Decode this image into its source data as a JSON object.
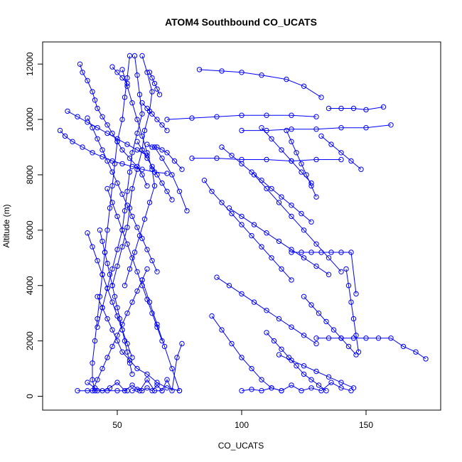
{
  "chart_data": {
    "type": "line",
    "title": "ATOM4 Southbound CO_UCATS",
    "xlabel": "CO_UCATS",
    "ylabel": "Altitude (m)",
    "xlim": [
      20,
      180
    ],
    "ylim": [
      -500,
      12800
    ],
    "x_ticks": [
      50,
      100,
      150
    ],
    "y_ticks": [
      0,
      2000,
      4000,
      6000,
      8000,
      10000,
      12000
    ],
    "grid": false,
    "legend": "none",
    "marker": "open-circle",
    "color": "#0000ff",
    "series": [
      {
        "x": [
          35,
          36,
          38,
          40,
          41,
          42,
          44,
          46,
          48,
          50,
          52,
          55,
          58,
          60,
          62
        ],
        "y": [
          12000,
          11700,
          11400,
          11000,
          10700,
          10400,
          10100,
          9800,
          9500,
          9200,
          8900,
          8600,
          8300,
          8000,
          7600
        ]
      },
      {
        "x": [
          27,
          29,
          32,
          36,
          40,
          44,
          48,
          52,
          56,
          60,
          65,
          70
        ],
        "y": [
          9600,
          9400,
          9200,
          9000,
          8800,
          8650,
          8500,
          8400,
          8300,
          8200,
          8100,
          8050
        ]
      },
      {
        "x": [
          30,
          34,
          38,
          42,
          46,
          50,
          54,
          58,
          62
        ],
        "y": [
          10300,
          10100,
          9900,
          9700,
          9500,
          9300,
          9100,
          8900,
          8700
        ]
      },
      {
        "x": [
          38,
          40,
          42,
          44,
          46,
          48,
          50,
          52,
          54,
          56,
          58,
          60,
          62,
          64,
          66
        ],
        "y": [
          10050,
          9700,
          9300,
          8900,
          8500,
          8100,
          7700,
          7300,
          6900,
          6500,
          6100,
          5700,
          5300,
          4900,
          4500
        ]
      },
      {
        "x": [
          55,
          54,
          53,
          52,
          50,
          49,
          48,
          47,
          46,
          45,
          44,
          43,
          42,
          41,
          40,
          40,
          41
        ],
        "y": [
          12300,
          11500,
          10800,
          10000,
          9200,
          8400,
          7600,
          6800,
          6000,
          5200,
          4400,
          3600,
          2800,
          2000,
          1200,
          600,
          200
        ]
      },
      {
        "x": [
          57,
          58,
          59,
          60,
          58,
          56,
          55,
          54,
          53,
          52,
          50,
          48,
          46,
          44,
          42
        ],
        "y": [
          12300,
          11600,
          10900,
          10200,
          9500,
          8800,
          8100,
          7400,
          6700,
          6000,
          5300,
          4600,
          3900,
          3200,
          2500
        ]
      },
      {
        "x": [
          60,
          62,
          64,
          63,
          61,
          60,
          58,
          56,
          55,
          54,
          52,
          50,
          48
        ],
        "y": [
          12300,
          11700,
          11000,
          10300,
          9600,
          8900,
          8200,
          7500,
          6800,
          6100,
          5400,
          4700,
          4000
        ]
      },
      {
        "x": [
          52,
          54,
          56,
          58,
          60,
          62,
          64,
          65,
          63,
          61,
          59,
          57,
          55,
          53
        ],
        "y": [
          11800,
          11200,
          10600,
          10000,
          9400,
          8800,
          8200,
          7600,
          7000,
          6400,
          5800,
          5200,
          4600,
          4000
        ]
      },
      {
        "x": [
          43,
          44,
          45,
          46,
          47,
          48,
          49,
          50,
          51,
          52,
          53,
          54,
          55,
          56
        ],
        "y": [
          6000,
          5600,
          5200,
          4800,
          4400,
          4000,
          3600,
          3200,
          2800,
          2400,
          2000,
          1600,
          1200,
          800
        ]
      },
      {
        "x": [
          46,
          48,
          50,
          52,
          54,
          56,
          58,
          60,
          62,
          64,
          66,
          68
        ],
        "y": [
          7500,
          7000,
          6500,
          6000,
          5500,
          5000,
          4500,
          4000,
          3500,
          3000,
          2500,
          2000
        ]
      },
      {
        "x": [
          38,
          40,
          42,
          44,
          46,
          48,
          50,
          52,
          54,
          56
        ],
        "y": [
          5900,
          5400,
          4900,
          4400,
          3900,
          3400,
          2900,
          2400,
          1900,
          1400
        ]
      },
      {
        "x": [
          42,
          44,
          46,
          48,
          50,
          52,
          55,
          58,
          62,
          66,
          70,
          75
        ],
        "y": [
          3600,
          3200,
          2800,
          2400,
          2000,
          1600,
          1300,
          1000,
          800,
          500,
          300,
          200
        ]
      },
      {
        "x": [
          40,
          42,
          44,
          46,
          48,
          50,
          52,
          54,
          56,
          58,
          60,
          62
        ],
        "y": [
          200,
          600,
          1000,
          1400,
          1800,
          2200,
          2600,
          3000,
          3400,
          3800,
          4200,
          4600
        ]
      },
      {
        "x": [
          38,
          41,
          44,
          47,
          50,
          53,
          56,
          59,
          62,
          65,
          68
        ],
        "y": [
          500,
          300,
          200,
          300,
          500,
          200,
          400,
          200,
          600,
          200,
          200
        ]
      },
      {
        "x": [
          34,
          38,
          42,
          46,
          50,
          54
        ],
        "y": [
          200,
          200,
          200,
          200,
          200,
          200
        ]
      },
      {
        "x": [
          56,
          58,
          60,
          62,
          64,
          66,
          68,
          70,
          72,
          74,
          76
        ],
        "y": [
          200,
          250,
          200,
          300,
          200,
          400,
          200,
          600,
          200,
          1400,
          1900
        ]
      },
      {
        "x": [
          60,
          63,
          66,
          69,
          72,
          75
        ],
        "y": [
          4200,
          3400,
          2600,
          1800,
          1000,
          200
        ]
      },
      {
        "x": [
          58,
          60,
          62,
          64,
          66,
          68,
          70,
          72
        ],
        "y": [
          9200,
          8900,
          8600,
          8300,
          8000,
          7700,
          7400,
          7100
        ]
      },
      {
        "x": [
          62,
          64,
          66,
          68,
          70,
          73,
          76
        ],
        "y": [
          9100,
          9000,
          9000,
          8900,
          8800,
          8500,
          8200
        ]
      },
      {
        "x": [
          65,
          68,
          72,
          75,
          78
        ],
        "y": [
          9000,
          8600,
          8000,
          7400,
          6700
        ]
      },
      {
        "x": [
          60,
          62,
          64,
          66,
          68,
          70
        ],
        "y": [
          10600,
          10400,
          10200,
          10000,
          9800,
          9600
        ]
      },
      {
        "x": [
          63,
          64,
          65,
          66,
          67
        ],
        "y": [
          11700,
          11500,
          11300,
          11100,
          10900
        ]
      },
      {
        "x": [
          48,
          50,
          52,
          54
        ],
        "y": [
          11900,
          11700,
          11500,
          11300
        ]
      },
      {
        "x": [
          70,
          80,
          90,
          100,
          110,
          120,
          130
        ],
        "y": [
          10000,
          10050,
          10100,
          10150,
          10150,
          10150,
          10100
        ]
      },
      {
        "x": [
          80,
          90,
          100,
          110,
          120,
          130,
          140
        ],
        "y": [
          8600,
          8600,
          8550,
          8550,
          8500,
          8550,
          8550
        ]
      },
      {
        "x": [
          83,
          92,
          100,
          108,
          118,
          125,
          132
        ],
        "y": [
          11800,
          11750,
          11700,
          11600,
          11450,
          11200,
          10800
        ]
      },
      {
        "x": [
          100,
          110,
          120,
          130,
          140,
          150,
          160
        ],
        "y": [
          9600,
          9600,
          9650,
          9650,
          9700,
          9700,
          9800
        ]
      },
      {
        "x": [
          135,
          140,
          145,
          150,
          157
        ],
        "y": [
          10400,
          10400,
          10400,
          10350,
          10450
        ]
      },
      {
        "x": [
          85,
          88,
          92,
          96,
          100,
          104,
          108,
          112,
          116,
          120
        ],
        "y": [
          7800,
          7400,
          7000,
          6600,
          6200,
          5800,
          5400,
          5000,
          4600,
          4200
        ]
      },
      {
        "x": [
          120,
          124,
          128,
          132,
          136,
          140,
          144,
          146
        ],
        "y": [
          5200,
          5200,
          5200,
          5200,
          5200,
          5200,
          5200,
          3700
        ]
      },
      {
        "x": [
          110,
          113,
          116,
          119,
          122,
          125,
          128,
          131,
          134
        ],
        "y": [
          2300,
          2000,
          1700,
          1400,
          1100,
          800,
          600,
          400,
          200
        ]
      },
      {
        "x": [
          130,
          135,
          140,
          145,
          150,
          155,
          160,
          165,
          170,
          174
        ],
        "y": [
          2100,
          2100,
          2100,
          2100,
          2100,
          2100,
          2100,
          1800,
          1600,
          1350
        ]
      },
      {
        "x": [
          90,
          95,
          100,
          105,
          110,
          115,
          120,
          125,
          130
        ],
        "y": [
          4300,
          4000,
          3700,
          3400,
          3100,
          2800,
          2500,
          2200,
          1900
        ]
      },
      {
        "x": [
          88,
          92,
          96,
          100,
          104,
          108,
          112,
          116
        ],
        "y": [
          2900,
          2400,
          1900,
          1400,
          1000,
          600,
          300,
          200
        ]
      },
      {
        "x": [
          100,
          104,
          108,
          112,
          116,
          120,
          124,
          128,
          132,
          136,
          140,
          144
        ],
        "y": [
          200,
          250,
          200,
          300,
          200,
          400,
          200,
          300,
          200,
          500,
          300,
          200
        ]
      },
      {
        "x": [
          105,
          110,
          115,
          120,
          125,
          130,
          135,
          140
        ],
        "y": [
          8000,
          7500,
          7000,
          6500,
          6000,
          5500,
          5000,
          4500
        ]
      },
      {
        "x": [
          95,
          100,
          105,
          110,
          115,
          120,
          125,
          130,
          135
        ],
        "y": [
          6800,
          6500,
          6200,
          5900,
          5600,
          5300,
          5000,
          4700,
          4400
        ]
      },
      {
        "x": [
          92,
          96,
          100,
          104,
          108,
          112,
          116,
          120,
          124,
          128
        ],
        "y": [
          9000,
          8700,
          8400,
          8100,
          7800,
          7500,
          7200,
          6900,
          6600,
          6300
        ]
      },
      {
        "x": [
          125,
          128,
          131,
          134,
          137,
          140,
          143,
          146
        ],
        "y": [
          3600,
          3300,
          3000,
          2700,
          2400,
          2100,
          1800,
          1500
        ]
      },
      {
        "x": [
          115,
          120,
          125,
          130,
          135,
          140,
          145
        ],
        "y": [
          1500,
          1300,
          1100,
          900,
          700,
          500,
          300
        ]
      },
      {
        "x": [
          132,
          136,
          140,
          144,
          148
        ],
        "y": [
          9400,
          9100,
          8800,
          8500,
          8200
        ]
      },
      {
        "x": [
          108,
          112,
          116,
          120,
          124,
          128
        ],
        "y": [
          9700,
          9300,
          8900,
          8500,
          8100,
          7700
        ]
      },
      {
        "x": [
          142,
          143,
          144,
          145,
          146,
          147
        ],
        "y": [
          4600,
          4000,
          3400,
          2800,
          2200,
          1600
        ]
      },
      {
        "x": [
          118,
          120,
          122,
          124,
          126,
          128,
          130
        ],
        "y": [
          9600,
          9200,
          8800,
          8400,
          8000,
          7600,
          7200
        ]
      }
    ]
  }
}
